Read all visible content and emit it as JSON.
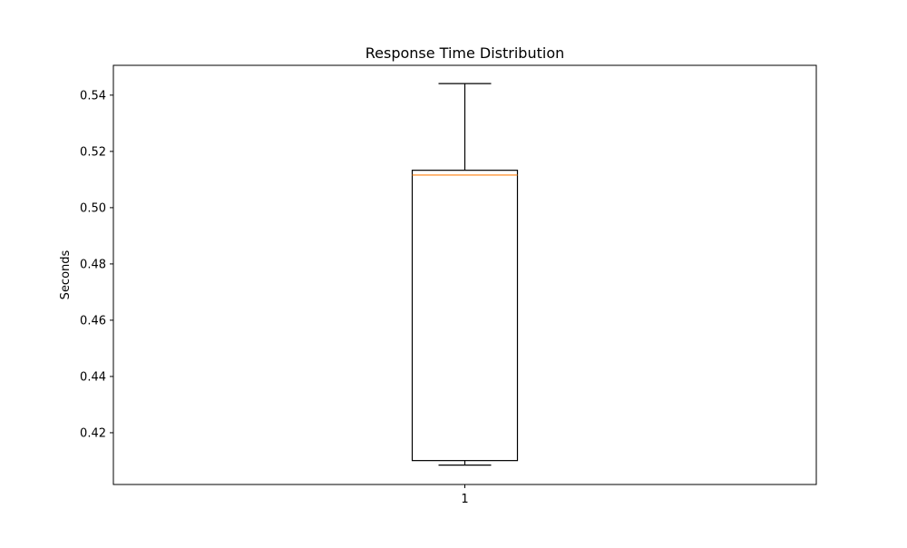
{
  "chart_data": {
    "type": "box",
    "title": "Response Time Distribution",
    "xlabel": "",
    "ylabel": "Seconds",
    "categories": [
      "1"
    ],
    "boxes": [
      {
        "label": "1",
        "whisker_low": 0.4085,
        "q1": 0.4101,
        "median": 0.5116,
        "q3": 0.5133,
        "whisker_high": 0.5441
      }
    ],
    "ylim": [
      0.4016,
      0.5506
    ],
    "yticks": [
      0.42,
      0.44,
      0.46,
      0.48,
      0.5,
      0.52,
      0.54
    ],
    "ytick_labels": [
      "0.42",
      "0.44",
      "0.46",
      "0.48",
      "0.50",
      "0.52",
      "0.54"
    ],
    "grid": false,
    "colors": {
      "box": "#000000",
      "median": "#ff7f0e",
      "axes": "#000000"
    }
  }
}
